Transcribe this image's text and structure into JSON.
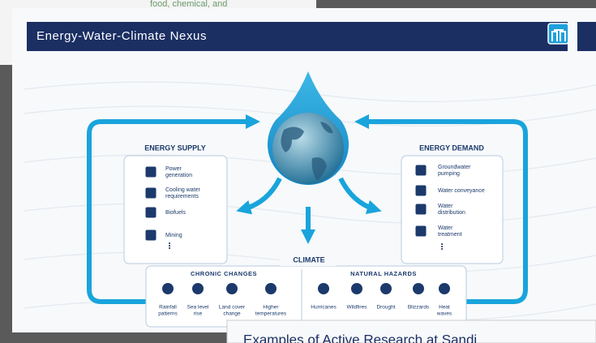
{
  "background_slide": {
    "text": "food, chemical, and"
  },
  "title": "Energy-Water-Climate Nexus",
  "energy_supply": {
    "heading": "ENERGY SUPPLY",
    "items": [
      [
        "Power",
        "generation"
      ],
      [
        "Cooling water",
        "requirements"
      ],
      [
        "Biofuels"
      ],
      [
        "Mining"
      ]
    ]
  },
  "energy_demand": {
    "heading": "ENERGY DEMAND",
    "items": [
      [
        "Groundwater",
        "pumping"
      ],
      [
        "Water conveyance"
      ],
      [
        "Water",
        "distribution"
      ],
      [
        "Water",
        "treatment"
      ]
    ]
  },
  "climate": {
    "heading": "CLIMATE",
    "chronic_changes": {
      "heading": "CHRONIC CHANGES",
      "items": [
        [
          "Rainfall",
          "patterns"
        ],
        [
          "Sea level",
          "rise"
        ],
        [
          "Land cover",
          "change"
        ],
        [
          "Higher",
          "temperatures"
        ]
      ]
    },
    "natural_hazards": {
      "heading": "NATURAL HAZARDS",
      "items": [
        [
          "Hurricanes"
        ],
        [
          "Wildfires"
        ],
        [
          "Drought"
        ],
        [
          "Blizzards"
        ],
        [
          "Heat",
          "waves"
        ]
      ]
    }
  },
  "next_slide": {
    "title": "Examples of Active Research at Sandi"
  }
}
